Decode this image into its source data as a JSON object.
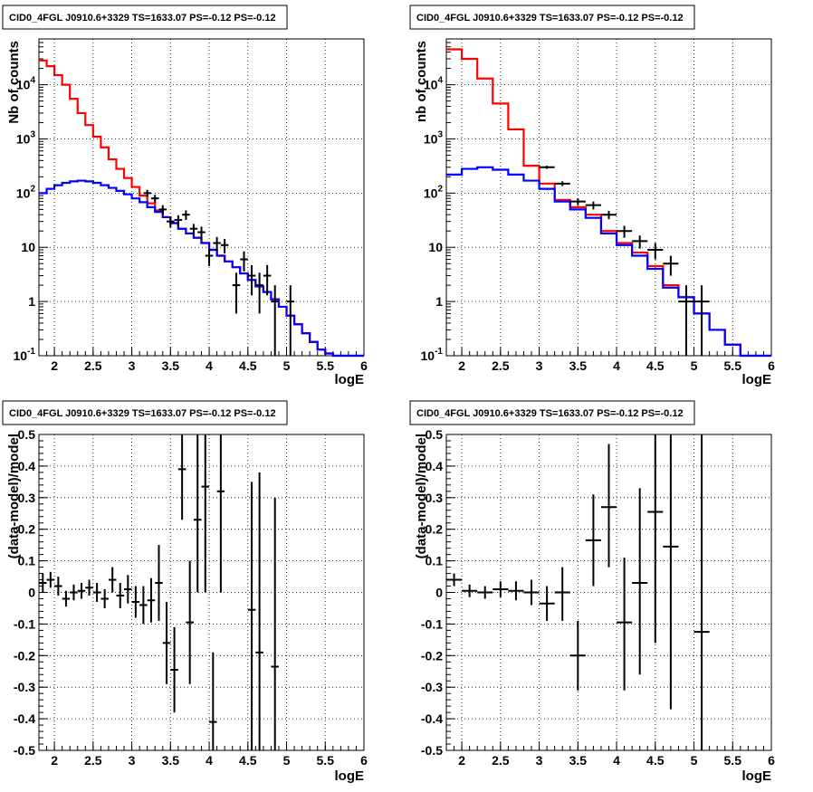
{
  "chart_data": [
    {
      "type": "histogram",
      "title": "CID0_4FGL J0910.6+3329 TS=1633.07 PS=-0.12 PS=-0.12",
      "xlabel": "logE",
      "ylabel": "Nb of counts",
      "xlim": [
        1.8,
        6.0
      ],
      "ylim": [
        0.1,
        70000
      ],
      "yscale": "log",
      "grid": true,
      "y_ticks": [
        "10^{-1}",
        "1",
        "10",
        "10^{2}",
        "10^{3}",
        "10^{4}"
      ],
      "x_ticks": [
        "2",
        "2.5",
        "3",
        "3.5",
        "4",
        "4.5",
        "5",
        "5.5",
        "6"
      ],
      "bin_edges": [
        1.8,
        1.9,
        2.0,
        2.1,
        2.2,
        2.3,
        2.4,
        2.5,
        2.6,
        2.7,
        2.8,
        2.9,
        3.0,
        3.1,
        3.2,
        3.3,
        3.4,
        3.5,
        3.6,
        3.7,
        3.8,
        3.9,
        4.0,
        4.1,
        4.2,
        4.3,
        4.4,
        4.5,
        4.6,
        4.7,
        4.8,
        4.9,
        5.0,
        5.1,
        5.2,
        5.3,
        5.4,
        5.5,
        5.6,
        5.7,
        5.8,
        5.9,
        6.0
      ],
      "series": [
        {
          "color": "#ff0000",
          "values": [
            28000,
            22000,
            15000,
            10000,
            5500,
            3000,
            1800,
            1100,
            700,
            420,
            280,
            190,
            130,
            90,
            65,
            48,
            36,
            28,
            22,
            18,
            15,
            12,
            9,
            7,
            5.5,
            4.3,
            3.3,
            2.5,
            1.9,
            1.5,
            1.1,
            0.8,
            0.55,
            0.38,
            0.26,
            0.18,
            0.13,
            0.11,
            0.1,
            0.1,
            0.1,
            0.1
          ]
        },
        {
          "color": "#0000ff",
          "values": [
            100,
            120,
            140,
            155,
            165,
            170,
            165,
            155,
            140,
            125,
            110,
            95,
            80,
            68,
            55,
            45,
            36,
            28,
            22,
            18,
            15,
            12,
            9,
            7,
            5.5,
            4.3,
            3.3,
            2.5,
            1.9,
            1.5,
            1.1,
            0.8,
            0.55,
            0.38,
            0.26,
            0.18,
            0.13,
            0.11,
            0.1,
            0.1,
            0.1,
            0.1
          ]
        }
      ],
      "points": [
        {
          "x": 3.2,
          "y": 100,
          "xerr": 0.05,
          "lo": 85,
          "hi": 115
        },
        {
          "x": 3.3,
          "y": 80,
          "xerr": 0.05,
          "lo": 67,
          "hi": 93
        },
        {
          "x": 3.4,
          "y": 50,
          "xerr": 0.05,
          "lo": 40,
          "hi": 60
        },
        {
          "x": 3.5,
          "y": 30,
          "xerr": 0.05,
          "lo": 23,
          "hi": 37
        },
        {
          "x": 3.6,
          "y": 32,
          "xerr": 0.05,
          "lo": 25,
          "hi": 39
        },
        {
          "x": 3.7,
          "y": 40,
          "xerr": 0.05,
          "lo": 32,
          "hi": 48
        },
        {
          "x": 3.8,
          "y": 22,
          "xerr": 0.05,
          "lo": 17,
          "hi": 27
        },
        {
          "x": 3.9,
          "y": 19,
          "xerr": 0.05,
          "lo": 14,
          "hi": 24
        },
        {
          "x": 4.0,
          "y": 7,
          "xerr": 0.05,
          "lo": 4.5,
          "hi": 9.5
        },
        {
          "x": 4.1,
          "y": 12,
          "xerr": 0.05,
          "lo": 8.5,
          "hi": 15.5
        },
        {
          "x": 4.2,
          "y": 11,
          "xerr": 0.05,
          "lo": 7.7,
          "hi": 14.3
        },
        {
          "x": 4.35,
          "y": 2,
          "xerr": 0.05,
          "lo": 0.6,
          "hi": 3.4
        },
        {
          "x": 4.45,
          "y": 6,
          "xerr": 0.05,
          "lo": 3.6,
          "hi": 8.4
        },
        {
          "x": 4.55,
          "y": 3,
          "xerr": 0.05,
          "lo": 1.3,
          "hi": 4.7
        },
        {
          "x": 4.65,
          "y": 2,
          "xerr": 0.05,
          "lo": 0.6,
          "hi": 3.4
        },
        {
          "x": 4.75,
          "y": 3,
          "xerr": 0.05,
          "lo": 1.3,
          "hi": 4.7
        },
        {
          "x": 4.85,
          "y": 1,
          "xerr": 0.05,
          "lo": 0.1,
          "hi": 2.0
        },
        {
          "x": 5.05,
          "y": 1,
          "xerr": 0.05,
          "lo": 0.1,
          "hi": 2.0
        }
      ]
    },
    {
      "type": "histogram",
      "title": "CID0_4FGL J0910.6+3329 TS=1633.07 PS=-0.12 PS=-0.12",
      "xlabel": "logE",
      "ylabel": "nb of counts",
      "xlim": [
        1.8,
        6.0
      ],
      "ylim": [
        0.1,
        70000
      ],
      "yscale": "log",
      "grid": true,
      "y_ticks": [
        "10^{-1}",
        "1",
        "10",
        "10^{2}",
        "10^{3}",
        "10^{4}"
      ],
      "x_ticks": [
        "2",
        "2.5",
        "3",
        "3.5",
        "4",
        "4.5",
        "5",
        "5.5",
        "6"
      ],
      "bin_edges": [
        1.8,
        2.0,
        2.2,
        2.4,
        2.6,
        2.8,
        3.0,
        3.2,
        3.4,
        3.6,
        3.8,
        4.0,
        4.2,
        4.4,
        4.6,
        4.8,
        5.0,
        5.2,
        5.4,
        5.6,
        5.8,
        6.0
      ],
      "series": [
        {
          "color": "#ff0000",
          "values": [
            45000,
            30000,
            13000,
            4500,
            1500,
            320,
            150,
            75,
            55,
            40,
            20,
            12,
            8,
            4.5,
            2,
            1.2,
            0.6,
            0.3,
            0.16,
            0.1,
            0.1
          ]
        },
        {
          "color": "#0000ff",
          "values": [
            220,
            280,
            300,
            270,
            220,
            170,
            120,
            70,
            50,
            35,
            18,
            11,
            7,
            4,
            1.8,
            1.2,
            0.6,
            0.3,
            0.16,
            0.1,
            0.1
          ]
        }
      ],
      "points": [
        {
          "x": 3.1,
          "y": 300,
          "xerr": 0.1,
          "lo": 280,
          "hi": 320
        },
        {
          "x": 3.3,
          "y": 150,
          "xerr": 0.1,
          "lo": 135,
          "hi": 165
        },
        {
          "x": 3.5,
          "y": 70,
          "xerr": 0.1,
          "lo": 60,
          "hi": 80
        },
        {
          "x": 3.7,
          "y": 60,
          "xerr": 0.1,
          "lo": 50,
          "hi": 70
        },
        {
          "x": 3.9,
          "y": 40,
          "xerr": 0.1,
          "lo": 33,
          "hi": 47
        },
        {
          "x": 4.1,
          "y": 20,
          "xerr": 0.1,
          "lo": 15,
          "hi": 25
        },
        {
          "x": 4.3,
          "y": 13,
          "xerr": 0.1,
          "lo": 9.5,
          "hi": 16.5
        },
        {
          "x": 4.5,
          "y": 9,
          "xerr": 0.1,
          "lo": 6,
          "hi": 12
        },
        {
          "x": 4.7,
          "y": 5,
          "xerr": 0.1,
          "lo": 3,
          "hi": 7
        },
        {
          "x": 4.9,
          "y": 1,
          "xerr": 0.1,
          "lo": 0.1,
          "hi": 2.0
        },
        {
          "x": 5.1,
          "y": 1,
          "xerr": 0.1,
          "lo": 0.1,
          "hi": 2.0
        }
      ]
    },
    {
      "type": "scatter",
      "title": "CID0_4FGL J0910.6+3329 TS=1633.07 PS=-0.12 PS=-0.12",
      "xlabel": "logE",
      "ylabel": "(data-model)/model",
      "xlim": [
        1.8,
        6.0
      ],
      "ylim": [
        -0.5,
        0.5
      ],
      "grid": true,
      "y_ticks": [
        "0.5",
        "0.4",
        "0.3",
        "0.2",
        "0.1",
        "0",
        "-0.1",
        "-0.2",
        "-0.3",
        "-0.4",
        "-0.5"
      ],
      "x_ticks": [
        "2",
        "2.5",
        "3",
        "3.5",
        "4",
        "4.5",
        "5",
        "5.5",
        "6"
      ],
      "points": [
        {
          "x": 1.85,
          "y": 0.03,
          "xerr": 0.05,
          "lo": 0.0,
          "hi": 0.06
        },
        {
          "x": 1.95,
          "y": 0.04,
          "xerr": 0.05,
          "lo": 0.015,
          "hi": 0.065
        },
        {
          "x": 2.05,
          "y": 0.02,
          "xerr": 0.05,
          "lo": -0.01,
          "hi": 0.05
        },
        {
          "x": 2.15,
          "y": -0.02,
          "xerr": 0.05,
          "lo": -0.045,
          "hi": 0.005
        },
        {
          "x": 2.25,
          "y": 0.0,
          "xerr": 0.05,
          "lo": -0.025,
          "hi": 0.025
        },
        {
          "x": 2.35,
          "y": 0.005,
          "xerr": 0.05,
          "lo": -0.02,
          "hi": 0.03
        },
        {
          "x": 2.45,
          "y": 0.015,
          "xerr": 0.05,
          "lo": -0.01,
          "hi": 0.04
        },
        {
          "x": 2.55,
          "y": 0.0,
          "xerr": 0.05,
          "lo": -0.03,
          "hi": 0.03
        },
        {
          "x": 2.65,
          "y": -0.02,
          "xerr": 0.05,
          "lo": -0.05,
          "hi": 0.01
        },
        {
          "x": 2.75,
          "y": 0.04,
          "xerr": 0.05,
          "lo": 0.0,
          "hi": 0.08
        },
        {
          "x": 2.85,
          "y": -0.01,
          "xerr": 0.05,
          "lo": -0.05,
          "hi": 0.03
        },
        {
          "x": 2.95,
          "y": 0.01,
          "xerr": 0.05,
          "lo": -0.035,
          "hi": 0.055
        },
        {
          "x": 3.05,
          "y": -0.03,
          "xerr": 0.05,
          "lo": -0.08,
          "hi": 0.02
        },
        {
          "x": 3.15,
          "y": -0.04,
          "xerr": 0.05,
          "lo": -0.1,
          "hi": 0.02
        },
        {
          "x": 3.25,
          "y": -0.025,
          "xerr": 0.05,
          "lo": -0.095,
          "hi": 0.045
        },
        {
          "x": 3.35,
          "y": 0.03,
          "xerr": 0.05,
          "lo": -0.09,
          "hi": 0.15
        },
        {
          "x": 3.45,
          "y": -0.16,
          "xerr": 0.05,
          "lo": -0.29,
          "hi": -0.03
        },
        {
          "x": 3.55,
          "y": -0.245,
          "xerr": 0.05,
          "lo": -0.38,
          "hi": -0.11
        },
        {
          "x": 3.65,
          "y": 0.39,
          "xerr": 0.05,
          "lo": 0.23,
          "hi": 0.55
        },
        {
          "x": 3.75,
          "y": -0.095,
          "xerr": 0.05,
          "lo": -0.29,
          "hi": 0.1
        },
        {
          "x": 3.85,
          "y": 0.23,
          "xerr": 0.05,
          "lo": 0.0,
          "hi": 0.5
        },
        {
          "x": 3.95,
          "y": 0.335,
          "xerr": 0.05,
          "lo": 0.0,
          "hi": 0.65
        },
        {
          "x": 4.05,
          "y": -0.41,
          "xerr": 0.05,
          "lo": -0.55,
          "hi": -0.19
        },
        {
          "x": 4.15,
          "y": 0.32,
          "xerr": 0.05,
          "lo": 0.0,
          "hi": 0.6
        },
        {
          "x": 4.55,
          "y": -0.055,
          "xerr": 0.05,
          "lo": -0.55,
          "hi": 0.35
        },
        {
          "x": 4.65,
          "y": -0.19,
          "xerr": 0.05,
          "lo": -0.55,
          "hi": 0.38
        },
        {
          "x": 4.85,
          "y": -0.235,
          "xerr": 0.05,
          "lo": -0.55,
          "hi": 0.3
        }
      ]
    },
    {
      "type": "scatter",
      "title": "CID0_4FGL J0910.6+3329 TS=1633.07 PS=-0.12 PS=-0.12",
      "xlabel": "logE",
      "ylabel": "(data-model)/model",
      "xlim": [
        1.8,
        6.0
      ],
      "ylim": [
        -0.5,
        0.5
      ],
      "grid": true,
      "y_ticks": [
        "0.5",
        "0.4",
        "0.3",
        "0.2",
        "0.1",
        "0",
        "-0.1",
        "-0.2",
        "-0.3",
        "-0.4",
        "-0.5"
      ],
      "x_ticks": [
        "2",
        "2.5",
        "3",
        "3.5",
        "4",
        "4.5",
        "5",
        "5.5",
        "6"
      ],
      "points": [
        {
          "x": 1.9,
          "y": 0.04,
          "xerr": 0.1,
          "lo": 0.02,
          "hi": 0.06
        },
        {
          "x": 2.1,
          "y": 0.005,
          "xerr": 0.1,
          "lo": -0.015,
          "hi": 0.025
        },
        {
          "x": 2.3,
          "y": 0.0,
          "xerr": 0.1,
          "lo": -0.02,
          "hi": 0.02
        },
        {
          "x": 2.5,
          "y": 0.01,
          "xerr": 0.1,
          "lo": -0.015,
          "hi": 0.035
        },
        {
          "x": 2.7,
          "y": 0.005,
          "xerr": 0.1,
          "lo": -0.025,
          "hi": 0.035
        },
        {
          "x": 2.9,
          "y": 0.0,
          "xerr": 0.1,
          "lo": -0.04,
          "hi": 0.04
        },
        {
          "x": 3.1,
          "y": -0.035,
          "xerr": 0.1,
          "lo": -0.09,
          "hi": 0.02
        },
        {
          "x": 3.3,
          "y": 0.0,
          "xerr": 0.1,
          "lo": -0.09,
          "hi": 0.08
        },
        {
          "x": 3.5,
          "y": -0.2,
          "xerr": 0.1,
          "lo": -0.31,
          "hi": -0.09
        },
        {
          "x": 3.7,
          "y": 0.165,
          "xerr": 0.1,
          "lo": 0.02,
          "hi": 0.31
        },
        {
          "x": 3.9,
          "y": 0.27,
          "xerr": 0.1,
          "lo": 0.08,
          "hi": 0.47
        },
        {
          "x": 4.1,
          "y": -0.095,
          "xerr": 0.1,
          "lo": -0.31,
          "hi": 0.11
        },
        {
          "x": 4.3,
          "y": 0.03,
          "xerr": 0.1,
          "lo": -0.26,
          "hi": 0.33
        },
        {
          "x": 4.5,
          "y": 0.255,
          "xerr": 0.1,
          "lo": -0.16,
          "hi": 0.55
        },
        {
          "x": 4.7,
          "y": 0.145,
          "xerr": 0.1,
          "lo": -0.37,
          "hi": 0.55
        },
        {
          "x": 5.1,
          "y": -0.125,
          "xerr": 0.1,
          "lo": -0.55,
          "hi": 0.55
        }
      ]
    }
  ]
}
